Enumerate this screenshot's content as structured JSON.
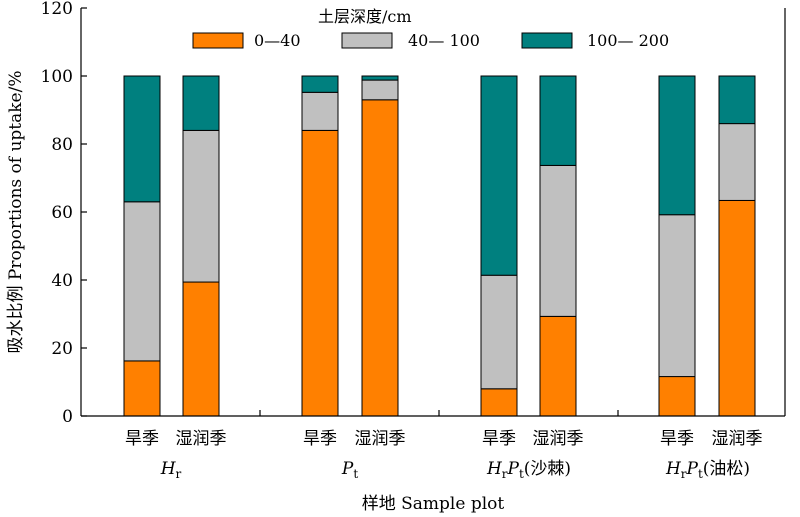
{
  "chart_data": {
    "type": "bar",
    "stacked": true,
    "ylabel": "吸水比例 Proportions of uptake/%",
    "xlabel": "样地 Sample plot",
    "ylim": [
      0,
      120
    ],
    "yticks": [
      0,
      20,
      40,
      60,
      80,
      100,
      120
    ],
    "grid": false,
    "legend": {
      "title": "土层深度/cm",
      "placement": "top",
      "entries": [
        "0—40",
        "40— 100",
        "100— 200"
      ]
    },
    "colors": [
      "#FF8000",
      "#C0C0C0",
      "#00807F"
    ],
    "groups": [
      {
        "main": "H",
        "sub": "r",
        "suffix": "",
        "season_labels": [
          "旱季",
          "湿润季"
        ]
      },
      {
        "main": "P",
        "sub": "t",
        "suffix": "",
        "season_labels": [
          "旱季",
          "湿润季"
        ]
      },
      {
        "main": "H",
        "sub": "r",
        "main2": "P",
        "sub2": "t",
        "suffix": "(沙棘)",
        "season_labels": [
          "旱季",
          "湿润季"
        ]
      },
      {
        "main": "H",
        "sub": "r",
        "main2": "P",
        "sub2": "t",
        "suffix": "(油松)",
        "season_labels": [
          "旱季",
          "湿润季"
        ]
      }
    ],
    "categories": [
      "Hr 旱季",
      "Hr 湿润季",
      "Pt 旱季",
      "Pt 湿润季",
      "HrPt(沙棘) 旱季",
      "HrPt(沙棘) 湿润季",
      "HrPt(油松) 旱季",
      "HrPt(油松) 湿润季"
    ],
    "series": [
      {
        "name": "0—40",
        "values": [
          16.2,
          39.4,
          84.0,
          93.0,
          8.0,
          29.3,
          11.6,
          63.4
        ]
      },
      {
        "name": "40— 100",
        "values": [
          46.8,
          44.6,
          11.2,
          5.8,
          33.4,
          44.4,
          47.6,
          22.6
        ]
      },
      {
        "name": "100— 200",
        "values": [
          37.0,
          16.0,
          4.8,
          1.2,
          58.6,
          26.3,
          40.8,
          14.0
        ]
      }
    ]
  }
}
